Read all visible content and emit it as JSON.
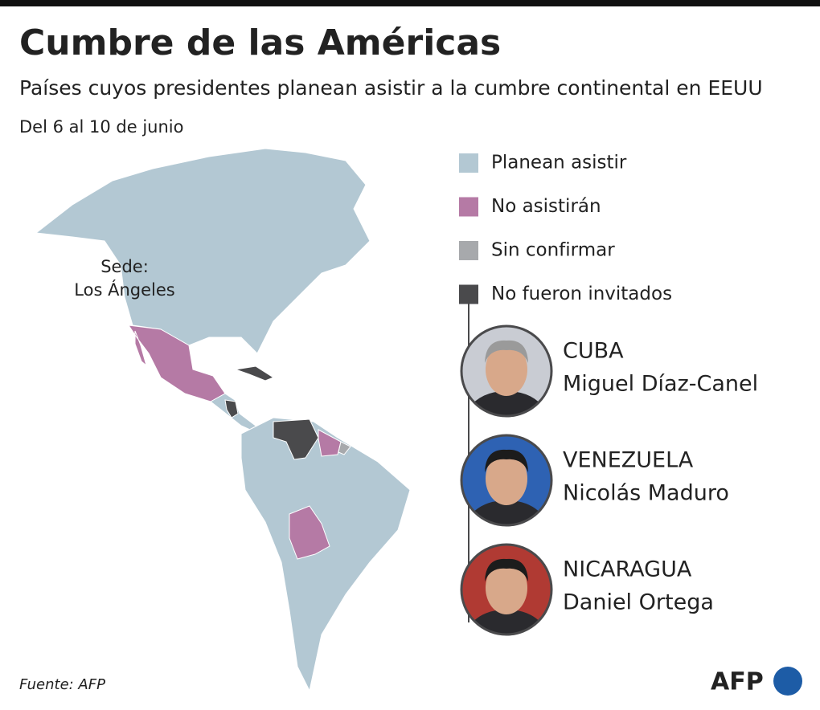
{
  "header": {
    "title": "Cumbre de las Américas",
    "subtitle": "Países cuyos presidentes planean asistir a la cumbre continental en EEUU",
    "date": "Del 6 al 10 de junio"
  },
  "map": {
    "host_label": "Sede:",
    "host_city": "Los Ángeles"
  },
  "legend": {
    "items": [
      {
        "label": "Planean asistir",
        "color": "#b3c8d3"
      },
      {
        "label": "No asistirán",
        "color": "#b57aa5"
      },
      {
        "label": "Sin confirmar",
        "color": "#a7a9ac"
      },
      {
        "label": "No fueron invitados",
        "color": "#4a4a4c"
      }
    ]
  },
  "leaders": [
    {
      "country": "CUBA",
      "name": "Miguel Díaz-Canel"
    },
    {
      "country": "VENEZUELA",
      "name": "Nicolás Maduro"
    },
    {
      "country": "NICARAGUA",
      "name": "Daniel Ortega"
    }
  ],
  "footer": {
    "source": "Fuente: AFP",
    "logo": "AFP"
  }
}
